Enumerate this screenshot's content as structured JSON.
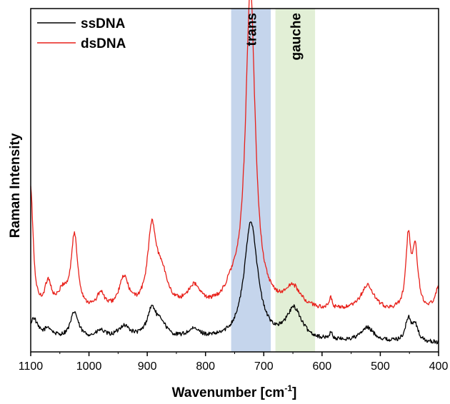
{
  "chart_data": {
    "type": "line",
    "xlabel": "Wavenumber [cm",
    "xlabel_sup": "-1",
    "xlabel_end": "]",
    "ylabel": "Raman Intensity",
    "xlim": [
      1100,
      400
    ],
    "x_reversed": true,
    "ylim": [
      0,
      1
    ],
    "y_ticks_shown": false,
    "x_ticks": [
      1100,
      1000,
      900,
      800,
      700,
      600,
      500,
      400
    ],
    "legend_position": "top-left",
    "bands": [
      {
        "label": "trans",
        "from": 756,
        "to": 688,
        "color": "#c5d5ec"
      },
      {
        "label": "gauche",
        "from": 680,
        "to": 612,
        "color": "#e2efd6"
      }
    ],
    "series": [
      {
        "name": "ssDNA",
        "color": "#000000",
        "peaks": [
          {
            "x": 1095,
            "h": 0.055,
            "w": 8
          },
          {
            "x": 1070,
            "h": 0.025,
            "w": 8
          },
          {
            "x": 1025,
            "h": 0.075,
            "w": 8
          },
          {
            "x": 980,
            "h": 0.02,
            "w": 9
          },
          {
            "x": 940,
            "h": 0.035,
            "w": 12
          },
          {
            "x": 892,
            "h": 0.085,
            "w": 10
          },
          {
            "x": 875,
            "h": 0.035,
            "w": 10
          },
          {
            "x": 820,
            "h": 0.025,
            "w": 14
          },
          {
            "x": 722,
            "h": 0.345,
            "w": 14
          },
          {
            "x": 648,
            "h": 0.09,
            "w": 16
          },
          {
            "x": 585,
            "h": 0.02,
            "w": 3
          },
          {
            "x": 522,
            "h": 0.04,
            "w": 14
          },
          {
            "x": 452,
            "h": 0.065,
            "w": 6
          },
          {
            "x": 440,
            "h": 0.045,
            "w": 6
          }
        ],
        "baseline": [
          {
            "x": 1100,
            "y": 0.04
          },
          {
            "x": 750,
            "y": 0.03
          },
          {
            "x": 400,
            "y": 0.025
          }
        ]
      },
      {
        "name": "dsDNA",
        "color": "#e8201a",
        "peaks": [
          {
            "x": 1100,
            "h": 0.36,
            "w": 5
          },
          {
            "x": 1070,
            "h": 0.08,
            "w": 7
          },
          {
            "x": 1045,
            "h": 0.05,
            "w": 10
          },
          {
            "x": 1025,
            "h": 0.215,
            "w": 7
          },
          {
            "x": 980,
            "h": 0.045,
            "w": 8
          },
          {
            "x": 940,
            "h": 0.09,
            "w": 10
          },
          {
            "x": 892,
            "h": 0.225,
            "w": 9
          },
          {
            "x": 875,
            "h": 0.09,
            "w": 12
          },
          {
            "x": 820,
            "h": 0.06,
            "w": 14
          },
          {
            "x": 755,
            "h": 0.04,
            "w": 14
          },
          {
            "x": 723,
            "h": 0.93,
            "w": 10
          },
          {
            "x": 650,
            "h": 0.06,
            "w": 16
          },
          {
            "x": 585,
            "h": 0.03,
            "w": 3
          },
          {
            "x": 522,
            "h": 0.075,
            "w": 14
          },
          {
            "x": 452,
            "h": 0.205,
            "w": 5
          },
          {
            "x": 440,
            "h": 0.17,
            "w": 6
          },
          {
            "x": 400,
            "h": 0.07,
            "w": 8
          }
        ],
        "baseline": [
          {
            "x": 1100,
            "y": 0.11
          },
          {
            "x": 750,
            "y": 0.12
          },
          {
            "x": 400,
            "y": 0.11
          }
        ]
      }
    ]
  }
}
